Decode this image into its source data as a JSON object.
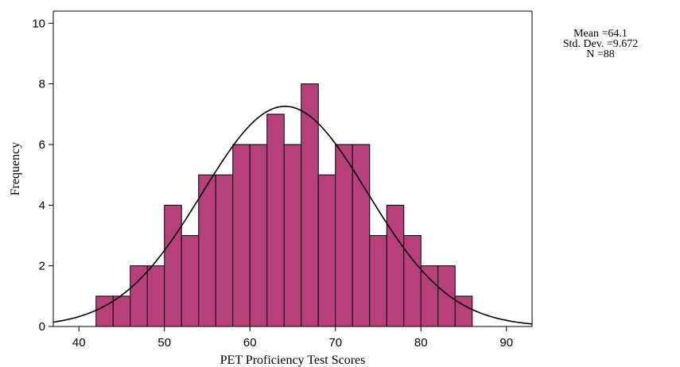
{
  "stats": {
    "mean": "Mean =64.1",
    "std": "Std. Dev. =9.672",
    "n": "N =88"
  },
  "chart_data": {
    "type": "bar",
    "title": "",
    "xlabel": "PET Proficiency Test Scores",
    "ylabel": "Frequency",
    "xlim": [
      37,
      93
    ],
    "ylim": [
      0,
      10.4
    ],
    "xticks": [
      40,
      50,
      60,
      70,
      80,
      90
    ],
    "yticks": [
      0,
      2,
      4,
      6,
      8,
      10
    ],
    "bin_width": 2,
    "bins": [
      {
        "x0": 42,
        "value": 1
      },
      {
        "x0": 44,
        "value": 1
      },
      {
        "x0": 46,
        "value": 2
      },
      {
        "x0": 48,
        "value": 2
      },
      {
        "x0": 50,
        "value": 4
      },
      {
        "x0": 52,
        "value": 3
      },
      {
        "x0": 54,
        "value": 5
      },
      {
        "x0": 56,
        "value": 5
      },
      {
        "x0": 58,
        "value": 6
      },
      {
        "x0": 60,
        "value": 6
      },
      {
        "x0": 62,
        "value": 7
      },
      {
        "x0": 64,
        "value": 6
      },
      {
        "x0": 66,
        "value": 8
      },
      {
        "x0": 68,
        "value": 5
      },
      {
        "x0": 70,
        "value": 6
      },
      {
        "x0": 72,
        "value": 6
      },
      {
        "x0": 74,
        "value": 3
      },
      {
        "x0": 76,
        "value": 4
      },
      {
        "x0": 78,
        "value": 3
      },
      {
        "x0": 80,
        "value": 2
      },
      {
        "x0": 82,
        "value": 2
      },
      {
        "x0": 84,
        "value": 1
      }
    ],
    "normal_curve": {
      "mean": 64.1,
      "std": 9.672,
      "n": 88
    },
    "bar_color": "#b8407a",
    "bar_edge": "#000000",
    "curve_color": "#000000",
    "grid": false
  }
}
